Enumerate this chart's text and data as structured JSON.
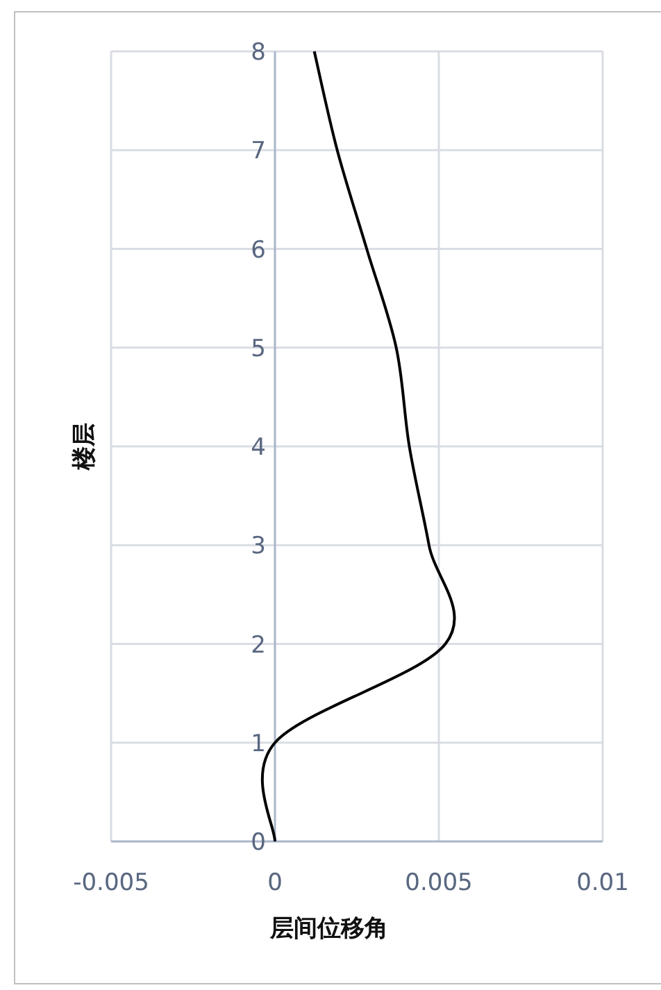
{
  "chart_data": {
    "type": "line",
    "xlabel": "层间位移角",
    "ylabel": "楼层",
    "series": [
      {
        "color": "#000000",
        "x": [
          0,
          0,
          0.0052,
          0.0047,
          0.0041,
          0.0037,
          0.0028,
          0.0019,
          0.0012
        ],
        "values": [
          0,
          1,
          2,
          3,
          4,
          5,
          6,
          7,
          8
        ]
      }
    ],
    "xlim": [
      -0.005,
      0.01
    ],
    "ylim": [
      0,
      8
    ],
    "xticks": [
      -0.005,
      0,
      0.005,
      0.01
    ],
    "yticks": [
      0,
      1,
      2,
      3,
      4,
      5,
      6,
      7,
      8
    ],
    "grid": true
  }
}
